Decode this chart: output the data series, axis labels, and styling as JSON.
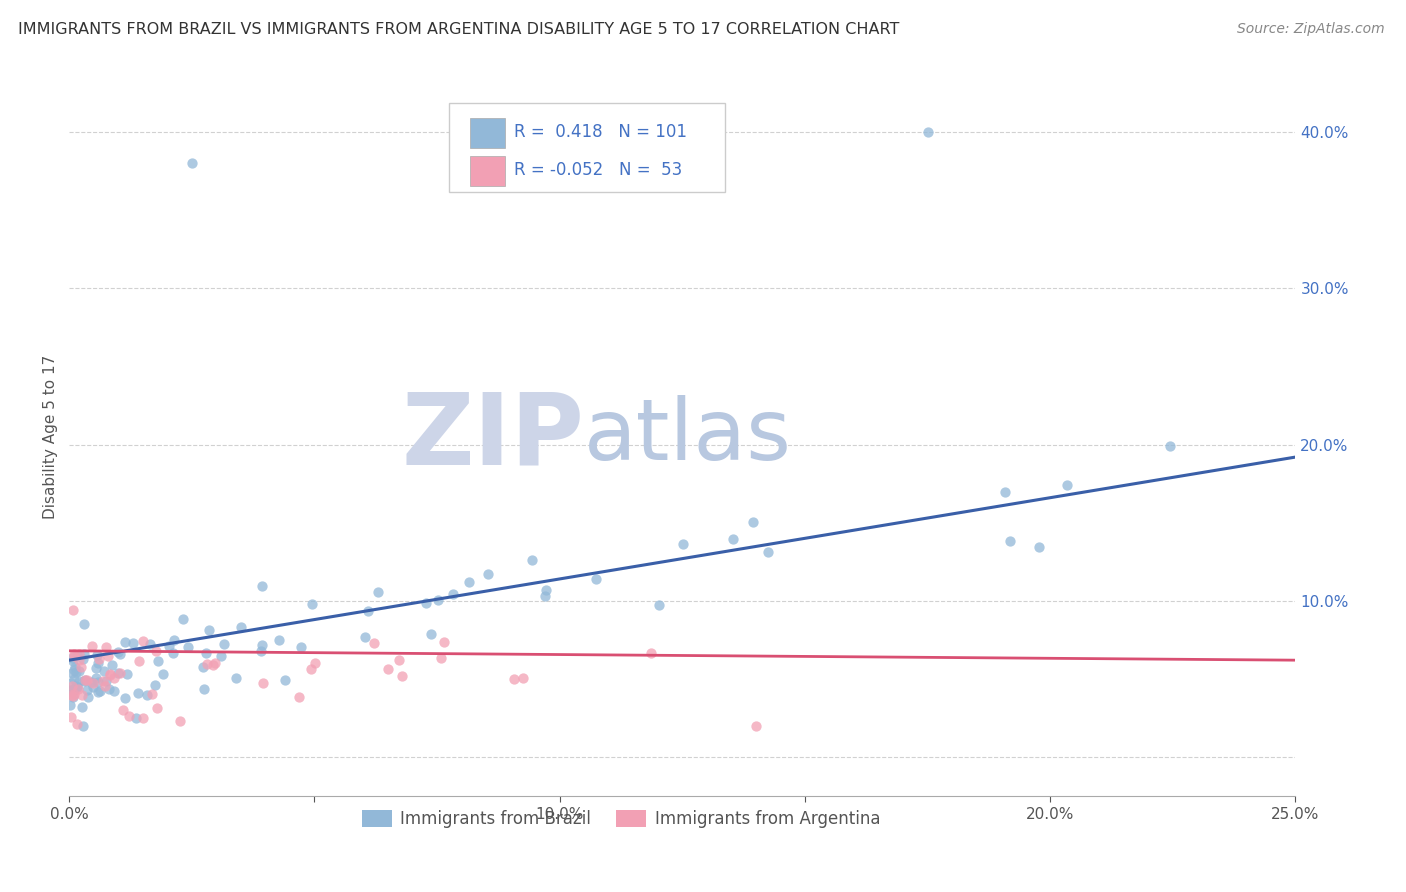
{
  "title": "IMMIGRANTS FROM BRAZIL VS IMMIGRANTS FROM ARGENTINA DISABILITY AGE 5 TO 17 CORRELATION CHART",
  "source": "Source: ZipAtlas.com",
  "ylabel": "Disability Age 5 to 17",
  "xlabel_brazil": "Immigrants from Brazil",
  "xlabel_argentina": "Immigrants from Argentina",
  "r_brazil": 0.418,
  "n_brazil": 101,
  "r_argentina": -0.052,
  "n_argentina": 53,
  "xlim": [
    0.0,
    0.25
  ],
  "ylim": [
    -0.025,
    0.435
  ],
  "color_brazil": "#92b8d8",
  "color_argentina": "#f2a0b4",
  "color_brazil_line": "#3a5fa8",
  "color_argentina_line": "#d94f72",
  "watermark_color": "#cdd5e8",
  "background_color": "#ffffff",
  "grid_color": "#cccccc",
  "brazil_line_x0": 0.0,
  "brazil_line_y0": 0.062,
  "brazil_line_x1": 0.25,
  "brazil_line_y1": 0.192,
  "argentina_line_x0": 0.0,
  "argentina_line_y0": 0.068,
  "argentina_line_x1": 0.25,
  "argentina_line_y1": 0.062,
  "ytick_positions": [
    0.0,
    0.1,
    0.2,
    0.3,
    0.4
  ],
  "ytick_labels": [
    "",
    "10.0%",
    "20.0%",
    "30.0%",
    "40.0%"
  ],
  "xtick_positions": [
    0.0,
    0.05,
    0.1,
    0.15,
    0.2,
    0.25
  ],
  "xtick_labels": [
    "0.0%",
    "",
    "10.0%",
    "",
    "20.0%",
    "25.0%"
  ]
}
